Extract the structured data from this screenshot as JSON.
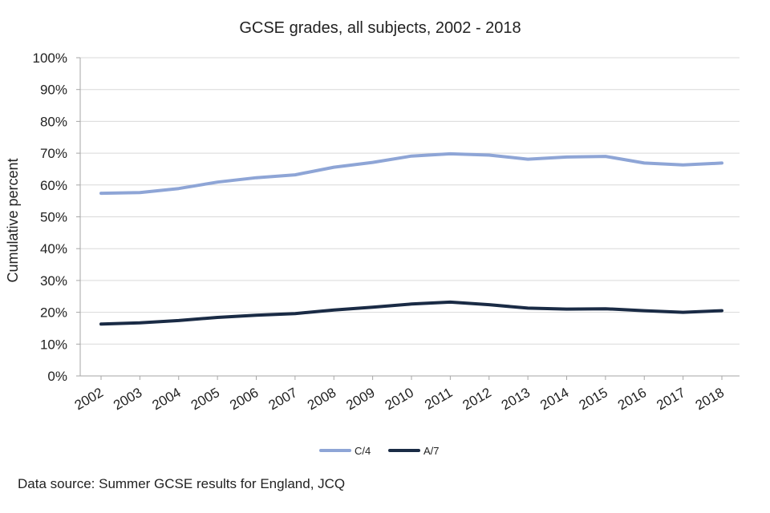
{
  "chart_data": {
    "type": "line",
    "title": "GCSE grades, all subjects, 2002 - 2018",
    "xlabel": "",
    "ylabel": "Cumulative percent",
    "categories": [
      "2002",
      "2003",
      "2004",
      "2005",
      "2006",
      "2007",
      "2008",
      "2009",
      "2010",
      "2011",
      "2012",
      "2013",
      "2014",
      "2015",
      "2016",
      "2017",
      "2018"
    ],
    "ylim": [
      0,
      100
    ],
    "yticks": [
      "0%",
      "10%",
      "20%",
      "30%",
      "40%",
      "50%",
      "60%",
      "70%",
      "80%",
      "90%",
      "100%"
    ],
    "grid": true,
    "legend_position": "bottom",
    "series": [
      {
        "name": "C/4",
        "color": "#8ea5d6",
        "values": [
          57.4,
          57.6,
          58.9,
          60.9,
          62.3,
          63.2,
          65.6,
          67.1,
          69.1,
          69.8,
          69.4,
          68.1,
          68.8,
          69.0,
          66.9,
          66.3,
          66.9
        ]
      },
      {
        "name": "A/7",
        "color": "#1a2b45",
        "values": [
          16.3,
          16.7,
          17.4,
          18.4,
          19.1,
          19.6,
          20.7,
          21.6,
          22.6,
          23.2,
          22.4,
          21.3,
          21.0,
          21.1,
          20.5,
          20.0,
          20.5
        ]
      }
    ]
  },
  "source_note": "Data source: Summer GCSE results for England, JCQ"
}
